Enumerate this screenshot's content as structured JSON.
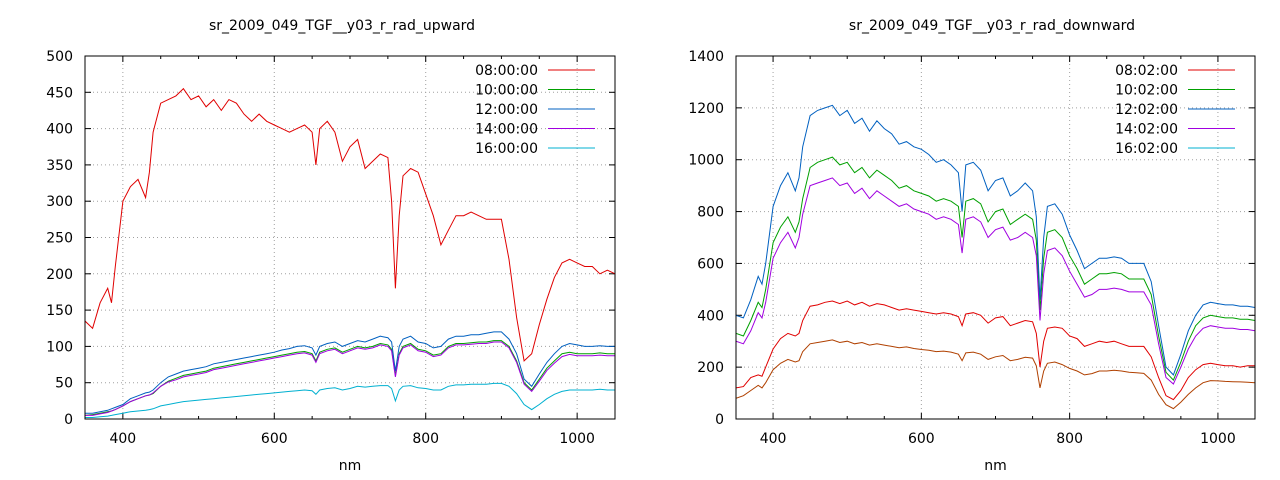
{
  "chart_data": [
    {
      "type": "line",
      "title": "sr_2009_049_TGF__y03_r_rad_upward",
      "xlabel": "nm",
      "ylabel": "",
      "xlim": [
        350,
        1050
      ],
      "ylim": [
        0,
        500
      ],
      "xticks": [
        400,
        600,
        800,
        1000
      ],
      "yticks": [
        0,
        50,
        100,
        150,
        200,
        250,
        300,
        350,
        400,
        450,
        500
      ],
      "grid": true,
      "legend_position": "top-right",
      "x": [
        350,
        360,
        370,
        380,
        385,
        390,
        400,
        410,
        420,
        430,
        435,
        440,
        450,
        460,
        470,
        480,
        490,
        500,
        510,
        520,
        530,
        540,
        550,
        560,
        570,
        580,
        590,
        600,
        610,
        620,
        630,
        640,
        650,
        655,
        660,
        670,
        680,
        690,
        700,
        710,
        720,
        730,
        740,
        750,
        755,
        760,
        765,
        770,
        780,
        790,
        800,
        810,
        820,
        830,
        840,
        850,
        860,
        870,
        880,
        890,
        900,
        910,
        920,
        930,
        940,
        950,
        960,
        970,
        980,
        990,
        1000,
        1010,
        1020,
        1030,
        1040,
        1050
      ],
      "series": [
        {
          "name": "08:00:00",
          "color": "#e00000",
          "values": [
            135,
            125,
            160,
            180,
            160,
            210,
            300,
            320,
            330,
            305,
            340,
            395,
            435,
            440,
            445,
            455,
            440,
            445,
            430,
            440,
            425,
            440,
            435,
            420,
            410,
            420,
            410,
            405,
            400,
            395,
            400,
            405,
            395,
            350,
            400,
            410,
            395,
            355,
            375,
            385,
            345,
            355,
            365,
            360,
            300,
            180,
            280,
            335,
            345,
            340,
            310,
            280,
            240,
            260,
            280,
            280,
            285,
            280,
            275,
            275,
            275,
            220,
            140,
            80,
            90,
            130,
            165,
            195,
            215,
            220,
            215,
            210,
            210,
            200,
            205,
            200
          ]
        },
        {
          "name": "10:00:00",
          "color": "#00a000",
          "values": [
            5,
            6,
            8,
            10,
            11,
            13,
            18,
            24,
            28,
            32,
            33,
            35,
            45,
            52,
            56,
            60,
            62,
            64,
            66,
            70,
            72,
            74,
            76,
            78,
            80,
            82,
            84,
            86,
            88,
            90,
            92,
            93,
            90,
            80,
            92,
            96,
            98,
            92,
            96,
            100,
            98,
            100,
            104,
            102,
            96,
            60,
            90,
            100,
            104,
            96,
            94,
            88,
            90,
            100,
            104,
            104,
            105,
            106,
            106,
            108,
            108,
            100,
            80,
            50,
            40,
            55,
            70,
            80,
            90,
            92,
            90,
            90,
            90,
            91,
            90,
            90
          ]
        },
        {
          "name": "12:00:00",
          "color": "#0060c0",
          "values": [
            8,
            8,
            10,
            12,
            14,
            16,
            20,
            28,
            32,
            36,
            37,
            40,
            50,
            58,
            62,
            66,
            68,
            70,
            72,
            76,
            78,
            80,
            82,
            84,
            86,
            88,
            90,
            92,
            95,
            97,
            100,
            101,
            98,
            88,
            100,
            104,
            106,
            100,
            104,
            108,
            106,
            110,
            114,
            112,
            106,
            66,
            100,
            110,
            114,
            106,
            104,
            98,
            100,
            110,
            114,
            114,
            116,
            116,
            118,
            120,
            120,
            110,
            90,
            55,
            45,
            62,
            78,
            90,
            100,
            104,
            102,
            100,
            100,
            101,
            100,
            100
          ]
        },
        {
          "name": "14:00:00",
          "color": "#a000e0",
          "values": [
            5,
            5,
            7,
            9,
            11,
            13,
            18,
            24,
            28,
            32,
            33,
            36,
            45,
            51,
            54,
            58,
            60,
            62,
            64,
            68,
            70,
            72,
            74,
            76,
            78,
            80,
            82,
            84,
            86,
            88,
            90,
            91,
            88,
            78,
            90,
            94,
            96,
            90,
            94,
            98,
            96,
            98,
            102,
            100,
            94,
            58,
            88,
            98,
            102,
            94,
            92,
            86,
            88,
            98,
            102,
            102,
            103,
            104,
            104,
            106,
            106,
            98,
            78,
            48,
            38,
            52,
            67,
            77,
            86,
            89,
            87,
            87,
            87,
            88,
            87,
            87
          ]
        },
        {
          "name": "16:00:00",
          "color": "#00b0d0",
          "values": [
            2,
            2,
            3,
            4,
            5,
            6,
            8,
            10,
            11,
            12,
            13,
            14,
            18,
            20,
            22,
            24,
            25,
            26,
            27,
            28,
            29,
            30,
            31,
            32,
            33,
            34,
            35,
            36,
            37,
            38,
            39,
            40,
            39,
            34,
            40,
            42,
            43,
            40,
            42,
            45,
            44,
            45,
            46,
            46,
            42,
            25,
            40,
            45,
            46,
            43,
            42,
            40,
            40,
            45,
            47,
            47,
            48,
            48,
            48,
            49,
            49,
            45,
            35,
            20,
            13,
            20,
            28,
            34,
            38,
            40,
            40,
            40,
            40,
            41,
            40,
            40
          ]
        }
      ]
    },
    {
      "type": "line",
      "title": "sr_2009_049_TGF__y03_r_rad_downward",
      "xlabel": "nm",
      "ylabel": "",
      "xlim": [
        350,
        1050
      ],
      "ylim": [
        0,
        1400
      ],
      "xticks": [
        400,
        600,
        800,
        1000
      ],
      "yticks": [
        0,
        200,
        400,
        600,
        800,
        1000,
        1200,
        1400
      ],
      "grid": true,
      "legend_position": "top-right",
      "x": [
        350,
        360,
        370,
        380,
        385,
        390,
        400,
        410,
        420,
        430,
        435,
        440,
        450,
        460,
        470,
        480,
        490,
        500,
        510,
        520,
        530,
        540,
        550,
        560,
        570,
        580,
        590,
        600,
        610,
        620,
        630,
        640,
        650,
        655,
        660,
        670,
        680,
        690,
        700,
        710,
        720,
        730,
        740,
        750,
        755,
        760,
        765,
        770,
        780,
        790,
        800,
        810,
        820,
        830,
        840,
        850,
        860,
        870,
        880,
        890,
        900,
        910,
        920,
        930,
        940,
        950,
        960,
        970,
        980,
        990,
        1000,
        1010,
        1020,
        1030,
        1040,
        1050
      ],
      "series": [
        {
          "name": "08:02:00",
          "color": "#e00000",
          "values": [
            120,
            125,
            160,
            170,
            165,
            200,
            270,
            310,
            330,
            320,
            330,
            380,
            435,
            440,
            450,
            455,
            445,
            455,
            440,
            450,
            435,
            445,
            440,
            430,
            420,
            425,
            420,
            415,
            410,
            405,
            410,
            405,
            395,
            360,
            405,
            410,
            400,
            370,
            390,
            395,
            360,
            370,
            380,
            375,
            330,
            200,
            300,
            350,
            355,
            350,
            320,
            310,
            280,
            290,
            300,
            295,
            300,
            290,
            280,
            280,
            280,
            240,
            160,
            90,
            75,
            110,
            160,
            190,
            210,
            215,
            210,
            205,
            205,
            200,
            205,
            205
          ]
        },
        {
          "name": "10:02:00",
          "color": "#00a000",
          "values": [
            330,
            320,
            380,
            450,
            430,
            500,
            680,
            740,
            780,
            720,
            760,
            850,
            970,
            990,
            1000,
            1010,
            980,
            990,
            950,
            970,
            930,
            960,
            940,
            920,
            890,
            900,
            880,
            870,
            860,
            840,
            850,
            840,
            820,
            700,
            840,
            850,
            830,
            760,
            800,
            810,
            750,
            770,
            790,
            770,
            690,
            420,
            620,
            720,
            730,
            700,
            630,
            580,
            520,
            540,
            560,
            560,
            565,
            560,
            540,
            540,
            540,
            480,
            320,
            180,
            150,
            220,
            300,
            360,
            390,
            400,
            395,
            390,
            390,
            385,
            385,
            380
          ]
        },
        {
          "name": "12:02:00",
          "color": "#0060c0",
          "values": [
            400,
            390,
            460,
            550,
            520,
            600,
            820,
            900,
            950,
            880,
            930,
            1050,
            1170,
            1190,
            1200,
            1210,
            1170,
            1190,
            1140,
            1160,
            1110,
            1150,
            1120,
            1100,
            1060,
            1070,
            1050,
            1040,
            1020,
            990,
            1000,
            980,
            950,
            800,
            980,
            990,
            960,
            880,
            920,
            930,
            860,
            880,
            910,
            880,
            780,
            460,
            700,
            820,
            830,
            790,
            710,
            650,
            580,
            600,
            620,
            620,
            625,
            620,
            600,
            600,
            600,
            530,
            360,
            200,
            170,
            250,
            340,
            400,
            440,
            450,
            445,
            440,
            440,
            435,
            435,
            430
          ]
        },
        {
          "name": "14:02:00",
          "color": "#a000e0",
          "values": [
            300,
            290,
            340,
            410,
            390,
            450,
            620,
            680,
            720,
            660,
            700,
            790,
            900,
            910,
            920,
            930,
            900,
            910,
            870,
            890,
            850,
            880,
            860,
            840,
            820,
            830,
            810,
            800,
            790,
            770,
            780,
            770,
            750,
            640,
            770,
            780,
            760,
            700,
            730,
            740,
            690,
            700,
            720,
            700,
            630,
            380,
            560,
            650,
            660,
            630,
            570,
            520,
            470,
            480,
            500,
            500,
            505,
            500,
            490,
            490,
            490,
            440,
            290,
            160,
            135,
            200,
            270,
            320,
            350,
            360,
            355,
            350,
            350,
            345,
            345,
            340
          ]
        },
        {
          "name": "16:02:00",
          "color": "#00b0d0",
          "values": [
            0,
            0,
            0,
            0,
            0,
            0,
            0,
            0,
            0,
            0,
            0,
            0,
            0,
            0,
            0,
            0,
            0,
            0,
            0,
            0,
            0,
            0,
            0,
            0,
            0,
            0,
            0,
            0,
            0,
            0,
            0,
            0,
            0,
            0,
            0,
            0,
            0,
            0,
            0,
            0,
            0,
            0,
            0,
            0,
            0,
            0,
            0,
            0,
            0,
            0,
            0,
            0,
            0,
            0,
            0,
            0,
            0,
            0,
            0,
            0,
            0,
            0,
            0,
            0,
            0,
            0,
            0,
            0,
            0,
            0,
            0,
            0,
            0,
            0,
            0,
            0
          ]
        },
        {
          "name": "",
          "color": "#b04000",
          "values": [
            80,
            90,
            110,
            130,
            120,
            140,
            190,
            215,
            230,
            220,
            225,
            260,
            290,
            295,
            300,
            305,
            295,
            300,
            290,
            295,
            285,
            290,
            285,
            280,
            275,
            278,
            272,
            268,
            265,
            260,
            262,
            258,
            250,
            225,
            255,
            258,
            250,
            230,
            240,
            245,
            225,
            230,
            238,
            235,
            205,
            120,
            185,
            215,
            220,
            210,
            195,
            185,
            170,
            175,
            185,
            185,
            188,
            185,
            180,
            178,
            176,
            150,
            95,
            55,
            40,
            65,
            95,
            120,
            140,
            148,
            147,
            145,
            144,
            143,
            142,
            140
          ]
        }
      ]
    }
  ]
}
